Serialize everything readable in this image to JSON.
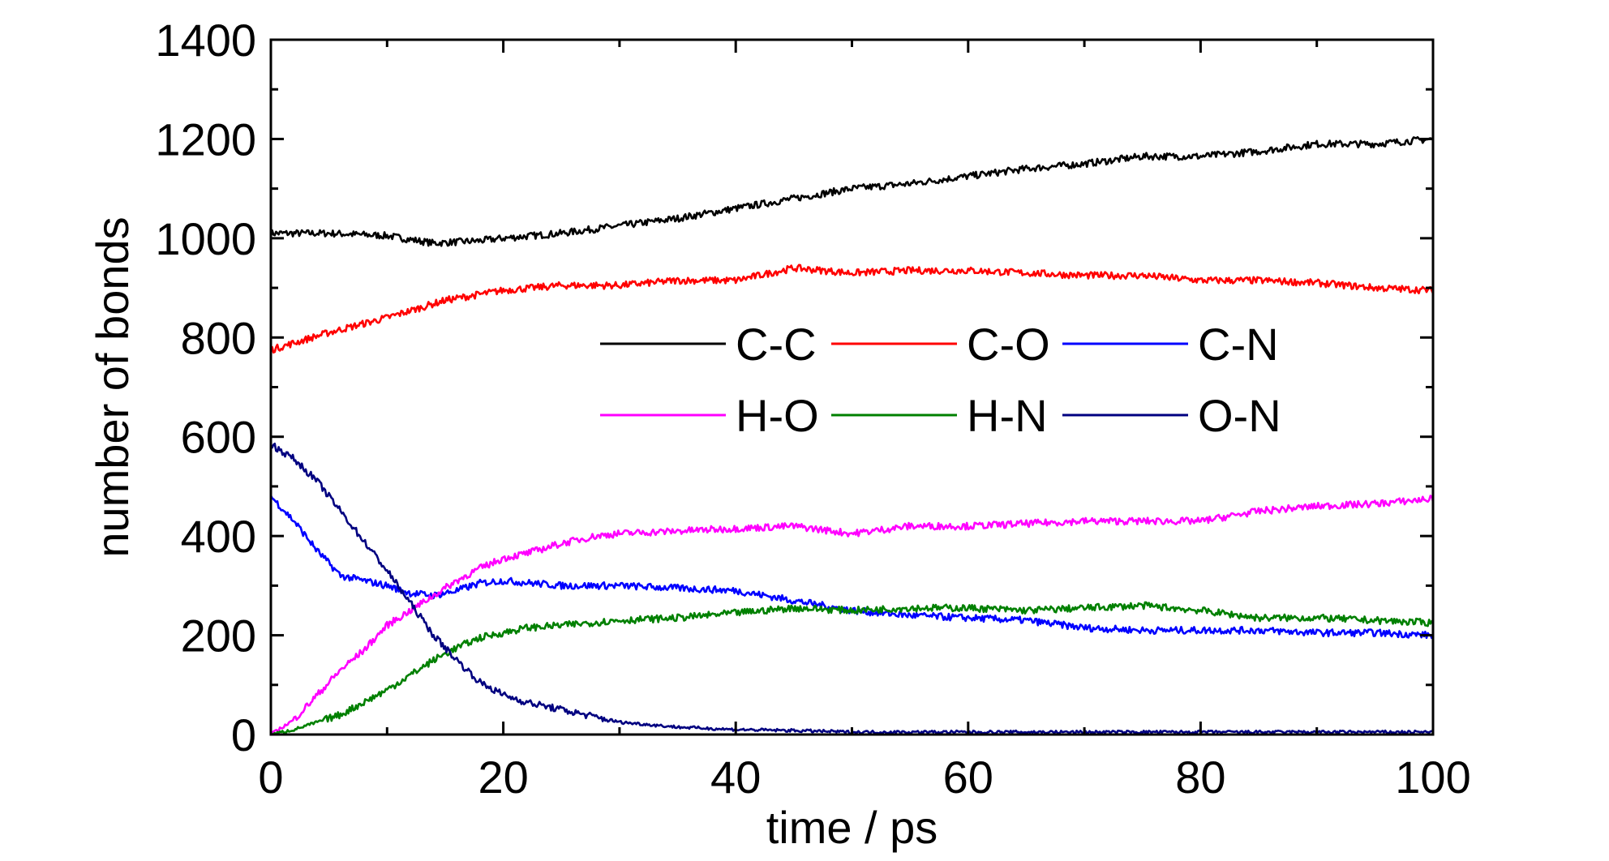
{
  "chart_data": {
    "type": "line",
    "xlabel": "time / ps",
    "ylabel": "number of bonds",
    "xlim": [
      0,
      100
    ],
    "ylim": [
      0,
      1400
    ],
    "xticks": [
      0,
      20,
      40,
      60,
      80,
      100
    ],
    "yticks": [
      0,
      200,
      400,
      600,
      800,
      1000,
      1200,
      1400
    ],
    "x_minor_step": 10,
    "y_minor_step": 100,
    "grid": false,
    "legend": {
      "placement": "center-right",
      "columns": 3
    },
    "series": [
      {
        "name": "C-C",
        "color": "#000000",
        "x": [
          0,
          5,
          10,
          14,
          18,
          20,
          25,
          30,
          35,
          40,
          45,
          50,
          55,
          60,
          65,
          70,
          75,
          80,
          85,
          90,
          95,
          100
        ],
        "y": [
          1010,
          1010,
          1005,
          990,
          995,
          1000,
          1010,
          1025,
          1040,
          1060,
          1080,
          1100,
          1110,
          1125,
          1140,
          1150,
          1165,
          1165,
          1175,
          1190,
          1190,
          1200
        ]
      },
      {
        "name": "C-O",
        "color": "#ff0000",
        "x": [
          0,
          5,
          10,
          15,
          20,
          25,
          30,
          35,
          40,
          45,
          50,
          55,
          60,
          65,
          70,
          75,
          80,
          85,
          90,
          95,
          100
        ],
        "y": [
          775,
          810,
          840,
          875,
          895,
          905,
          905,
          915,
          915,
          940,
          930,
          935,
          935,
          930,
          925,
          925,
          915,
          915,
          910,
          900,
          895
        ]
      },
      {
        "name": "C-N",
        "color": "#0000ff",
        "x": [
          0,
          2,
          4,
          6,
          8,
          10,
          12,
          14,
          16,
          18,
          20,
          25,
          30,
          35,
          40,
          45,
          50,
          55,
          60,
          65,
          70,
          75,
          80,
          85,
          90,
          95,
          100
        ],
        "y": [
          480,
          430,
          370,
          320,
          310,
          300,
          285,
          280,
          290,
          305,
          310,
          300,
          300,
          295,
          290,
          270,
          250,
          240,
          235,
          230,
          215,
          210,
          210,
          210,
          205,
          205,
          200
        ]
      },
      {
        "name": "H-O",
        "color": "#ff00ff",
        "x": [
          0,
          2,
          4,
          6,
          8,
          10,
          12,
          14,
          16,
          18,
          20,
          22,
          25,
          28,
          30,
          35,
          40,
          45,
          50,
          55,
          60,
          65,
          70,
          75,
          80,
          85,
          90,
          95,
          100
        ],
        "y": [
          0,
          30,
          80,
          130,
          170,
          220,
          250,
          280,
          310,
          335,
          355,
          365,
          385,
          400,
          405,
          410,
          415,
          420,
          405,
          420,
          420,
          425,
          430,
          430,
          430,
          450,
          460,
          465,
          475
        ]
      },
      {
        "name": "H-N",
        "color": "#008000",
        "x": [
          0,
          2,
          4,
          6,
          8,
          10,
          12,
          14,
          16,
          18,
          20,
          22,
          25,
          30,
          35,
          40,
          45,
          50,
          55,
          60,
          65,
          70,
          75,
          80,
          85,
          90,
          95,
          100
        ],
        "y": [
          0,
          10,
          25,
          40,
          65,
          90,
          120,
          150,
          175,
          195,
          205,
          215,
          220,
          230,
          235,
          245,
          255,
          250,
          255,
          255,
          250,
          255,
          260,
          250,
          235,
          235,
          230,
          225
        ]
      },
      {
        "name": "O-N",
        "color": "#000080",
        "x": [
          0,
          2,
          4,
          6,
          8,
          10,
          12,
          14,
          16,
          18,
          20,
          22,
          25,
          28,
          30,
          35,
          40,
          45,
          50,
          60,
          70,
          80,
          90,
          100
        ],
        "y": [
          585,
          555,
          510,
          450,
          390,
          330,
          265,
          200,
          150,
          105,
          80,
          65,
          50,
          35,
          25,
          15,
          10,
          8,
          5,
          5,
          5,
          5,
          5,
          5
        ]
      }
    ]
  }
}
